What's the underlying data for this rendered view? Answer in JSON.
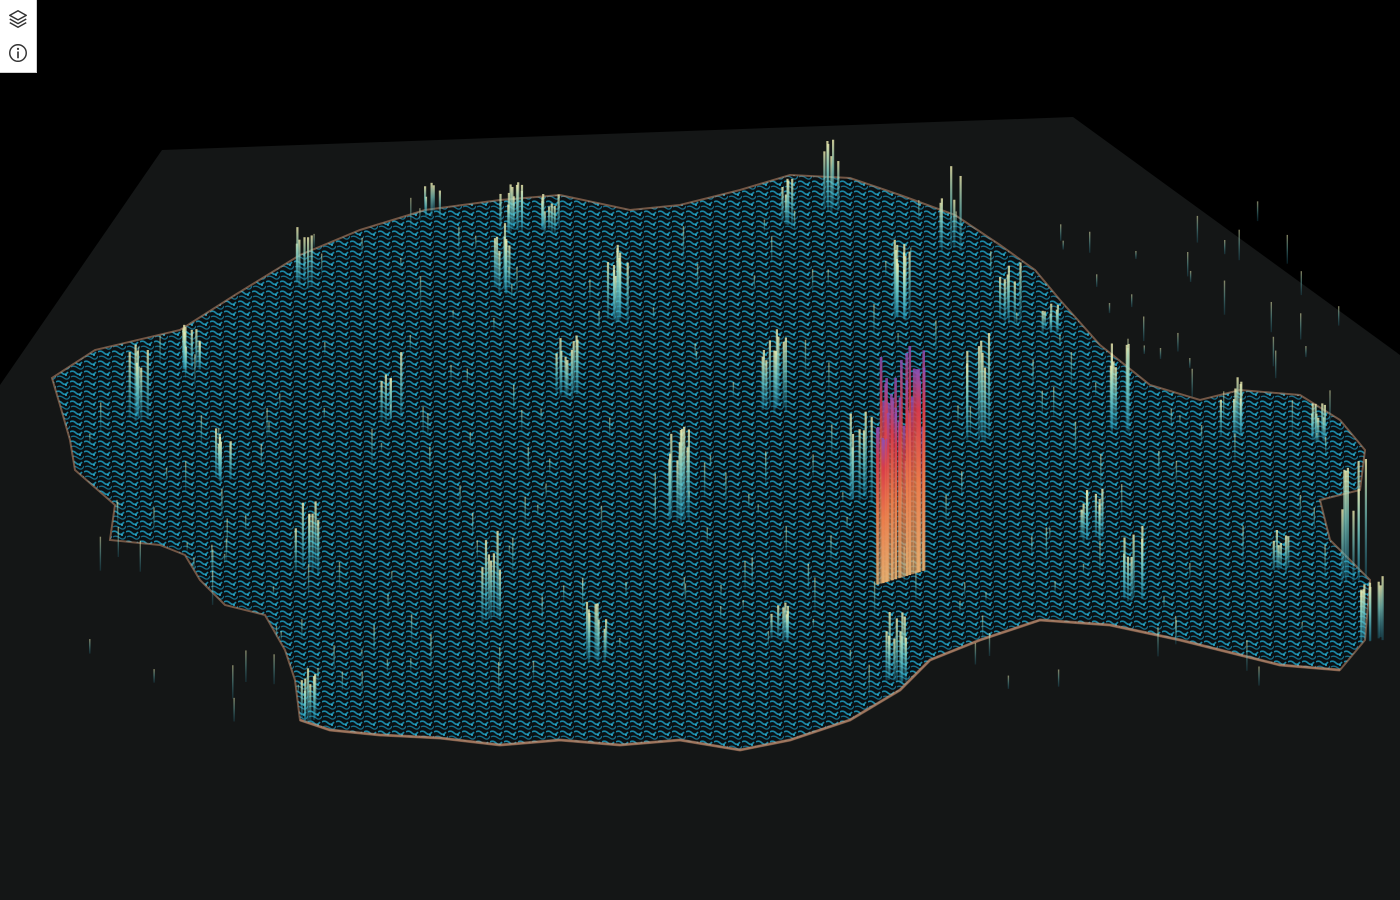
{
  "toolbar": {
    "buttons": [
      {
        "id": "layers",
        "icon": "layers-icon",
        "tooltip": ""
      },
      {
        "id": "info",
        "icon": "info-icon",
        "tooltip": ""
      }
    ]
  },
  "map": {
    "view": "3d-tilted",
    "basemap_color": "#000000",
    "ground_plane_color": "#161818",
    "surface_color": "#1f9cbf",
    "spike_low_color": "#4fb8c9",
    "spike_mid_color": "#e9e6a6",
    "spike_high_color": "#e8553f",
    "spike_max_color": "#9a4fb0"
  }
}
